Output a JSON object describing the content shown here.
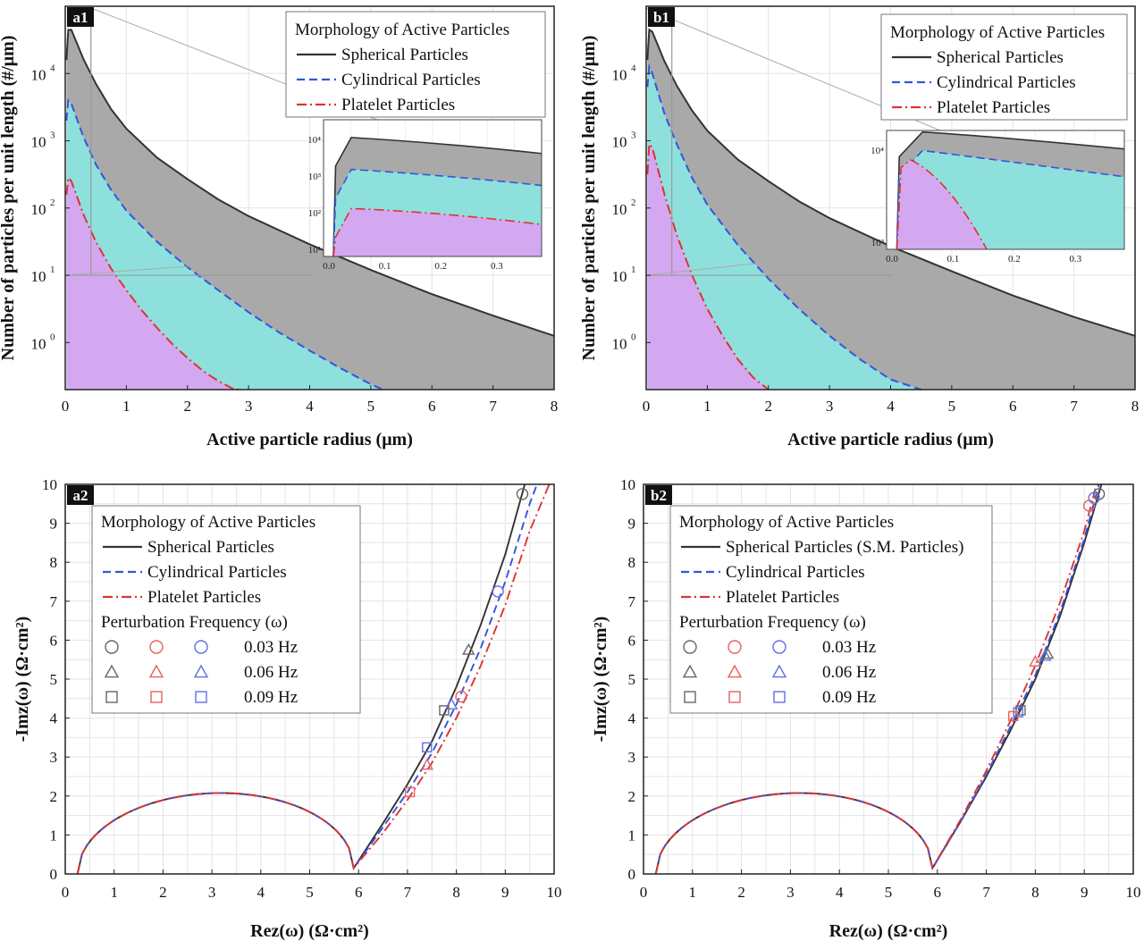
{
  "colors": {
    "spherical": "#333333",
    "cylindrical": "#3355dd",
    "platelet": "#dd3333",
    "fill_spherical": "#a9a9a9",
    "fill_cylindrical": "#8ee0dc",
    "fill_platelet": "#d4a8f0",
    "marker_black": "#666666",
    "marker_red": "#e86060",
    "marker_blue": "#6070e0"
  },
  "chart_data": [
    {
      "id": "a1",
      "type": "area",
      "panel_label": "a1",
      "xlabel": "Active particle radius (μm)",
      "ylabel": "Number of particles per unit length (#/μm)",
      "xlim": [
        0,
        8
      ],
      "ylim_log10": [
        -0.7,
        5
      ],
      "xticks": [
        "0",
        "1",
        "2",
        "3",
        "4",
        "5",
        "6",
        "7",
        "8"
      ],
      "yticks": [
        {
          "exp": "0",
          "log": 0
        },
        {
          "exp": "1",
          "log": 1
        },
        {
          "exp": "2",
          "log": 2
        },
        {
          "exp": "3",
          "log": 3
        },
        {
          "exp": "4",
          "log": 4
        }
      ],
      "legend_title": "Morphology of Active Particles",
      "series": [
        {
          "name": "Spherical Particles",
          "key": "spherical",
          "x": [
            0.02,
            0.05,
            0.1,
            0.2,
            0.3,
            0.5,
            0.75,
            1,
            1.5,
            2,
            2.5,
            3,
            4,
            5,
            6,
            7,
            8
          ],
          "log10": [
            4.2,
            4.65,
            4.65,
            4.43,
            4.21,
            3.85,
            3.47,
            3.18,
            2.75,
            2.43,
            2.13,
            1.88,
            1.46,
            1.08,
            0.72,
            0.4,
            0.1
          ]
        },
        {
          "name": "Cylindrical Particles",
          "key": "cylindrical",
          "x": [
            0.02,
            0.05,
            0.1,
            0.2,
            0.3,
            0.5,
            0.75,
            1,
            1.5,
            2,
            2.5,
            3,
            3.5,
            4,
            4.5,
            5,
            5.2
          ],
          "log10": [
            3.3,
            3.6,
            3.55,
            3.3,
            3.05,
            2.65,
            2.27,
            1.96,
            1.5,
            1.12,
            0.78,
            0.45,
            0.15,
            -0.12,
            -0.38,
            -0.62,
            -0.7
          ]
        },
        {
          "name": "Platelet Particles",
          "key": "platelet",
          "x": [
            0.02,
            0.05,
            0.1,
            0.2,
            0.3,
            0.5,
            0.75,
            1,
            1.25,
            1.5,
            1.75,
            2,
            2.25,
            2.5,
            2.75,
            2.85
          ],
          "log10": [
            2.2,
            2.45,
            2.4,
            2.15,
            1.9,
            1.5,
            1.1,
            0.78,
            0.48,
            0.22,
            -0.02,
            -0.23,
            -0.42,
            -0.57,
            -0.69,
            -0.7
          ]
        }
      ],
      "inset": {
        "xticks": [
          "0.0",
          "0.1",
          "0.2",
          "0.3"
        ],
        "yticks": [
          "10¹",
          "10²",
          "10³",
          "10⁴"
        ]
      }
    },
    {
      "id": "b1",
      "type": "area",
      "panel_label": "b1",
      "xlabel": "Active particle radius (μm)",
      "ylabel": "Number of particles per unit length (#/μm)",
      "xlim": [
        0,
        8
      ],
      "ylim_log10": [
        -0.7,
        5
      ],
      "xticks": [
        "0",
        "1",
        "2",
        "3",
        "4",
        "5",
        "6",
        "7",
        "8"
      ],
      "yticks": [
        {
          "exp": "0",
          "log": 0
        },
        {
          "exp": "1",
          "log": 1
        },
        {
          "exp": "2",
          "log": 2
        },
        {
          "exp": "3",
          "log": 3
        },
        {
          "exp": "4",
          "log": 4
        }
      ],
      "legend_title": "Morphology of Active Particles",
      "series": [
        {
          "name": "Spherical Particles",
          "key": "spherical",
          "x": [
            0.02,
            0.05,
            0.1,
            0.2,
            0.3,
            0.5,
            0.75,
            1,
            1.5,
            2,
            2.5,
            3,
            4,
            5,
            6,
            7,
            8
          ],
          "log10": [
            4.2,
            4.65,
            4.62,
            4.4,
            4.18,
            3.82,
            3.45,
            3.15,
            2.72,
            2.4,
            2.1,
            1.85,
            1.43,
            1.06,
            0.7,
            0.38,
            0.1
          ]
        },
        {
          "name": "Cylindrical Particles",
          "key": "cylindrical",
          "x": [
            0.02,
            0.05,
            0.1,
            0.2,
            0.3,
            0.5,
            0.75,
            1,
            1.5,
            2,
            2.5,
            3,
            3.5,
            4,
            4.5
          ],
          "log10": [
            3.8,
            4.1,
            4.0,
            3.7,
            3.4,
            2.95,
            2.45,
            2.05,
            1.45,
            0.95,
            0.5,
            0.1,
            -0.25,
            -0.55,
            -0.7
          ]
        },
        {
          "name": "Platelet Particles",
          "key": "platelet",
          "x": [
            0.02,
            0.05,
            0.1,
            0.2,
            0.3,
            0.5,
            0.75,
            1,
            1.25,
            1.5,
            1.75,
            2
          ],
          "log10": [
            2.5,
            2.95,
            2.9,
            2.55,
            2.2,
            1.6,
            1.0,
            0.5,
            0.1,
            -0.25,
            -0.52,
            -0.7
          ]
        }
      ],
      "inset": {
        "xticks": [
          "0.0",
          "0.1",
          "0.2",
          "0.3"
        ],
        "yticks": [
          "10³",
          "10⁴"
        ]
      }
    },
    {
      "id": "a2",
      "type": "line",
      "panel_label": "a2",
      "xlabel": "Rez(ω) (Ω·cm²)",
      "ylabel": "-Imz(ω) (Ω·cm²)",
      "xlim": [
        0,
        10
      ],
      "ylim": [
        0,
        10
      ],
      "xticks": [
        "0",
        "1",
        "2",
        "3",
        "4",
        "5",
        "6",
        "7",
        "8",
        "9",
        "10"
      ],
      "yticks": [
        "0",
        "1",
        "2",
        "3",
        "4",
        "5",
        "6",
        "7",
        "8",
        "9",
        "10"
      ],
      "semicircle": {
        "x_start": 0.25,
        "x_end": 5.9,
        "peak": 2.0
      },
      "legend_title": "Morphology of Active Particles",
      "series": [
        {
          "name": "Spherical Particles",
          "key": "spherical",
          "tail_x": [
            5.9,
            6.5,
            7,
            7.5,
            8,
            8.5,
            9,
            9.4
          ],
          "tail_y": [
            0.15,
            1.3,
            2.3,
            3.4,
            4.8,
            6.4,
            8.2,
            10
          ]
        },
        {
          "name": "Cylindrical Particles",
          "key": "cylindrical",
          "tail_x": [
            5.9,
            6.5,
            7,
            7.5,
            8,
            8.5,
            9,
            9.5,
            9.65
          ],
          "tail_y": [
            0.15,
            1.2,
            2.1,
            3.1,
            4.35,
            5.8,
            7.5,
            9.5,
            10
          ]
        },
        {
          "name": "Platelet Particles",
          "key": "platelet",
          "tail_x": [
            5.9,
            6.5,
            7,
            7.5,
            8,
            8.5,
            9,
            9.5,
            9.9
          ],
          "tail_y": [
            0.15,
            1.05,
            1.9,
            2.85,
            4.0,
            5.35,
            6.9,
            8.8,
            10
          ]
        }
      ],
      "freq_title": "Perturbation Frequency (ω)",
      "frequencies": [
        "0.03 Hz",
        "0.06 Hz",
        "0.09 Hz"
      ],
      "markers": [
        {
          "shape": "circle",
          "color": "black",
          "x": 9.35,
          "y": 9.75
        },
        {
          "shape": "circle",
          "color": "blue",
          "x": 8.85,
          "y": 7.25
        },
        {
          "shape": "circle",
          "color": "red",
          "x": 8.1,
          "y": 4.55
        },
        {
          "shape": "triangle",
          "color": "black",
          "x": 8.25,
          "y": 5.75
        },
        {
          "shape": "triangle",
          "color": "blue",
          "x": 7.9,
          "y": 4.35
        },
        {
          "shape": "triangle",
          "color": "red",
          "x": 7.4,
          "y": 2.8
        },
        {
          "shape": "square",
          "color": "black",
          "x": 7.75,
          "y": 4.2
        },
        {
          "shape": "square",
          "color": "blue",
          "x": 7.4,
          "y": 3.25
        },
        {
          "shape": "square",
          "color": "red",
          "x": 7.05,
          "y": 2.1
        }
      ]
    },
    {
      "id": "b2",
      "type": "line",
      "panel_label": "b2",
      "xlabel": "Rez(ω) (Ω·cm²)",
      "ylabel": "-Imz(ω) (Ω·cm²)",
      "xlim": [
        0,
        10
      ],
      "ylim": [
        0,
        10
      ],
      "xticks": [
        "0",
        "1",
        "2",
        "3",
        "4",
        "5",
        "6",
        "7",
        "8",
        "9",
        "10"
      ],
      "yticks": [
        "0",
        "1",
        "2",
        "3",
        "4",
        "5",
        "6",
        "7",
        "8",
        "9",
        "10"
      ],
      "semicircle": {
        "x_start": 0.25,
        "x_end": 5.9,
        "peak": 2.0
      },
      "legend_title": "Morphology of Active Particles",
      "series": [
        {
          "name": "Spherical Particles (S.M. Particles)",
          "key": "spherical",
          "tail_x": [
            5.9,
            6.5,
            7,
            7.5,
            8,
            8.5,
            9,
            9.35
          ],
          "tail_y": [
            0.15,
            1.4,
            2.5,
            3.7,
            5.0,
            6.6,
            8.5,
            10
          ]
        },
        {
          "name": "Cylindrical Particles",
          "key": "cylindrical",
          "tail_x": [
            5.9,
            6.5,
            7,
            7.5,
            8,
            8.5,
            9,
            9.3
          ],
          "tail_y": [
            0.15,
            1.4,
            2.55,
            3.8,
            5.1,
            6.7,
            8.6,
            10
          ]
        },
        {
          "name": "Platelet Particles",
          "key": "platelet",
          "tail_x": [
            5.9,
            6.5,
            7,
            7.5,
            8,
            8.5,
            9,
            9.25
          ],
          "tail_y": [
            0.15,
            1.45,
            2.65,
            3.95,
            5.35,
            6.95,
            8.8,
            10
          ]
        }
      ],
      "freq_title": "Perturbation Frequency (ω)",
      "frequencies": [
        "0.03 Hz",
        "0.06 Hz",
        "0.09 Hz"
      ],
      "markers": [
        {
          "shape": "circle",
          "color": "black",
          "x": 9.3,
          "y": 9.75
        },
        {
          "shape": "circle",
          "color": "blue",
          "x": 9.2,
          "y": 9.65
        },
        {
          "shape": "circle",
          "color": "red",
          "x": 9.1,
          "y": 9.45
        },
        {
          "shape": "triangle",
          "color": "black",
          "x": 8.25,
          "y": 5.65
        },
        {
          "shape": "triangle",
          "color": "blue",
          "x": 8.2,
          "y": 5.6
        },
        {
          "shape": "triangle",
          "color": "red",
          "x": 8.0,
          "y": 5.45
        },
        {
          "shape": "square",
          "color": "black",
          "x": 7.7,
          "y": 4.2
        },
        {
          "shape": "square",
          "color": "blue",
          "x": 7.65,
          "y": 4.15
        },
        {
          "shape": "square",
          "color": "red",
          "x": 7.55,
          "y": 4.05
        }
      ]
    }
  ]
}
